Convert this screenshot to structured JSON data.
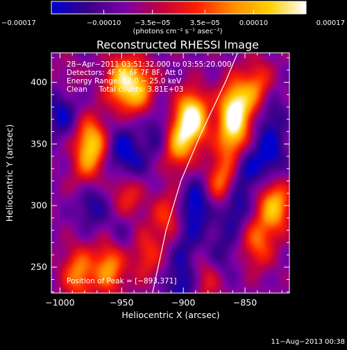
{
  "chart_data": {
    "type": "heatmap",
    "title": "Reconstructed RHESSI Image",
    "xlabel": "Heliocentric X (arcsec)",
    "ylabel": "Heliocentric Y (arcsec)",
    "xlim": [
      -1007,
      -814
    ],
    "ylim": [
      229,
      424
    ],
    "xticks": [
      {
        "value": -1000,
        "label": "−1000"
      },
      {
        "value": -950,
        "label": "−950"
      },
      {
        "value": -900,
        "label": "−900"
      },
      {
        "value": -850,
        "label": "−850"
      }
    ],
    "yticks": [
      {
        "value": 250,
        "label": "250"
      },
      {
        "value": 300,
        "label": "300"
      },
      {
        "value": 350,
        "label": "350"
      },
      {
        "value": 400,
        "label": "400"
      }
    ],
    "colorbar": {
      "range": [
        -0.00017,
        0.00017
      ],
      "ticks": [
        {
          "value": -0.00017,
          "label": "−0.00017"
        },
        {
          "value": -0.0001,
          "label": "−0.00010"
        },
        {
          "value": -3.5e-05,
          "label": "−3.5e−05"
        },
        {
          "value": 3.5e-05,
          "label": "3.5e−05"
        },
        {
          "value": 0.0001,
          "label": "0.00010"
        },
        {
          "value": 0.00017,
          "label": "0.00017"
        }
      ],
      "unit_label": "(photons cm⁻² s⁻¹ asec⁻²)",
      "colors": [
        "#0000d0",
        "#3a0088",
        "#7a00a8",
        "#c00040",
        "#ff2000",
        "#ff8c00",
        "#ffd000",
        "#ffffff"
      ]
    },
    "annotations": [
      "28−Apr−2011 03:51:32.000 to 03:55:20.000",
      "Detectors: 4F 5F 6F 7F 8F, Att 0",
      "Energy Range: 12.0 − 25.0 keV",
      "Clean     Total counts: 3.81E+03"
    ],
    "peak_label": "Position of Peak = [−893,371]",
    "peak": {
      "x": -893,
      "y": 371
    },
    "limb_curve": [
      [
        -925,
        229
      ],
      [
        -914,
        280
      ],
      [
        -902,
        320
      ],
      [
        -885,
        360
      ],
      [
        -866,
        400
      ],
      [
        -856,
        424
      ]
    ],
    "intensity_blobs": [
      {
        "x": -975,
        "y": 350,
        "v": 0.75
      },
      {
        "x": -992,
        "y": 395,
        "v": 0.55
      },
      {
        "x": -950,
        "y": 400,
        "v": 0.7
      },
      {
        "x": -935,
        "y": 395,
        "v": 0.55
      },
      {
        "x": -893,
        "y": 371,
        "v": 1.0
      },
      {
        "x": -905,
        "y": 350,
        "v": 0.6
      },
      {
        "x": -858,
        "y": 380,
        "v": 0.85
      },
      {
        "x": -860,
        "y": 355,
        "v": 0.6
      },
      {
        "x": -868,
        "y": 318,
        "v": 0.6
      },
      {
        "x": -840,
        "y": 395,
        "v": 0.5
      },
      {
        "x": -826,
        "y": 300,
        "v": 0.7
      },
      {
        "x": -840,
        "y": 270,
        "v": 0.45
      },
      {
        "x": -985,
        "y": 245,
        "v": 0.55
      },
      {
        "x": -960,
        "y": 250,
        "v": 0.6
      },
      {
        "x": -930,
        "y": 260,
        "v": 0.35
      },
      {
        "x": -945,
        "y": 310,
        "v": 0.45
      },
      {
        "x": -978,
        "y": 320,
        "v": 0.35
      },
      {
        "x": -912,
        "y": 290,
        "v": 0.4
      },
      {
        "x": -880,
        "y": 240,
        "v": 0.3
      },
      {
        "x": -998,
        "y": 378,
        "v": -0.45
      },
      {
        "x": -990,
        "y": 395,
        "v": -0.35
      },
      {
        "x": -975,
        "y": 305,
        "v": -0.45
      },
      {
        "x": -950,
        "y": 345,
        "v": -0.35
      },
      {
        "x": -920,
        "y": 360,
        "v": -0.3
      },
      {
        "x": -890,
        "y": 300,
        "v": -0.45
      },
      {
        "x": -902,
        "y": 235,
        "v": -0.35
      },
      {
        "x": -860,
        "y": 300,
        "v": -0.45
      },
      {
        "x": -850,
        "y": 330,
        "v": -0.35
      },
      {
        "x": -830,
        "y": 340,
        "v": -0.4
      },
      {
        "x": -830,
        "y": 375,
        "v": -0.3
      },
      {
        "x": -940,
        "y": 330,
        "v": -0.25
      },
      {
        "x": -870,
        "y": 260,
        "v": -0.25
      },
      {
        "x": -900,
        "y": 270,
        "v": -0.25
      },
      {
        "x": -950,
        "y": 280,
        "v": -0.2
      }
    ]
  },
  "footer": {
    "date": "11−Aug−2013 00:38"
  }
}
